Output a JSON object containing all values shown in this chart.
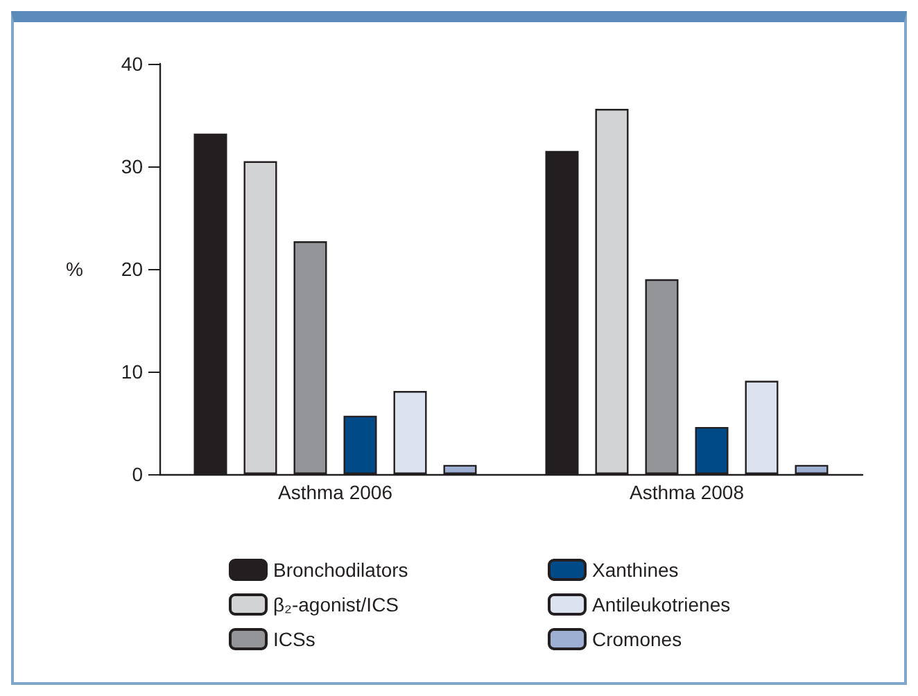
{
  "chart_data": {
    "type": "bar",
    "ylabel": "%",
    "categories": [
      "Asthma 2006",
      "Asthma 2008"
    ],
    "series": [
      {
        "name": "Bronchodilators",
        "color": "#231f20",
        "values": [
          33.2,
          31.5
        ]
      },
      {
        "name": "β₂-agonist/ICS",
        "color": "#d1d3d4",
        "values": [
          30.5,
          35.6
        ]
      },
      {
        "name": "ICSs",
        "color": "#939598",
        "values": [
          22.7,
          19.0
        ]
      },
      {
        "name": "Xanthines",
        "color": "#004b87",
        "values": [
          5.7,
          4.6
        ]
      },
      {
        "name": "Antileukotrienes",
        "color": "#dce3f0",
        "values": [
          8.1,
          9.1
        ]
      },
      {
        "name": "Cromones",
        "color": "#9db0d3",
        "values": [
          0.9,
          0.9
        ]
      }
    ],
    "ylim": [
      0,
      40
    ],
    "yticks": [
      0,
      10,
      20,
      30,
      40
    ],
    "grid": false,
    "legend": "bottom"
  }
}
